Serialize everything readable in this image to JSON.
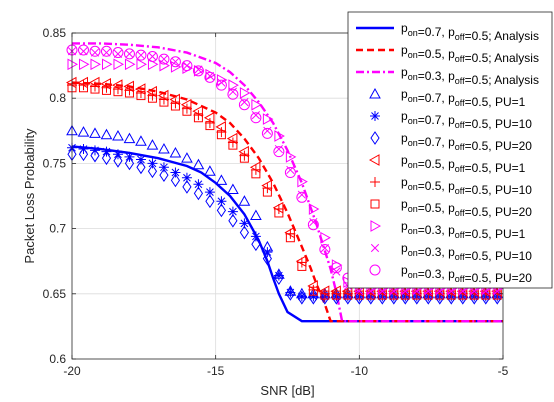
{
  "chart_data": {
    "type": "line",
    "xlabel": "SNR [dB]",
    "ylabel": "Packet Loss Probability",
    "xlim": [
      -20,
      -5
    ],
    "ylim": [
      0.6,
      0.85
    ],
    "xticks": [
      -20,
      -15,
      -10,
      -5
    ],
    "yticks": [
      0.6,
      0.65,
      0.7,
      0.75,
      0.8,
      0.85
    ],
    "xtick_labels": [
      "-20",
      "-15",
      "-10",
      "-5"
    ],
    "ytick_labels": [
      "0.6",
      "0.65",
      "0.7",
      "0.75",
      "0.8",
      "0.85"
    ],
    "grid": true,
    "legend_position": "top-right",
    "series": [
      {
        "name": "p_on=0.7, p_off=0.5; Analysis",
        "kind": "line",
        "color": "#0000ff",
        "dash": "solid",
        "x": [
          -20,
          -19,
          -18,
          -17,
          -16,
          -15.5,
          -15,
          -14.5,
          -14,
          -13.5,
          -13.2,
          -13,
          -12.8,
          -12.5,
          -12,
          -11,
          -10,
          -9,
          -8,
          -7,
          -6,
          -5
        ],
        "y": [
          0.763,
          0.761,
          0.758,
          0.754,
          0.748,
          0.743,
          0.735,
          0.725,
          0.711,
          0.691,
          0.675,
          0.662,
          0.65,
          0.636,
          0.629,
          0.629,
          0.629,
          0.629,
          0.629,
          0.629,
          0.629,
          0.629
        ]
      },
      {
        "name": "p_on=0.5, p_off=0.5; Analysis",
        "kind": "line",
        "color": "#ff0000",
        "dash": "dashed",
        "x": [
          -20,
          -19,
          -18,
          -17,
          -16,
          -15,
          -14.5,
          -14,
          -13.5,
          -13,
          -12.5,
          -12,
          -11.7,
          -11.5,
          -11.2,
          -11,
          -10,
          -9,
          -8,
          -7,
          -6,
          -5
        ],
        "y": [
          0.812,
          0.811,
          0.809,
          0.805,
          0.799,
          0.789,
          0.781,
          0.769,
          0.754,
          0.735,
          0.712,
          0.686,
          0.67,
          0.658,
          0.642,
          0.629,
          0.629,
          0.629,
          0.629,
          0.629,
          0.629,
          0.629
        ]
      },
      {
        "name": "p_on=0.3, p_off=0.5; Analysis",
        "kind": "line",
        "color": "#ff00ff",
        "dash": "dashdot",
        "x": [
          -20,
          -19,
          -18,
          -17,
          -16,
          -15,
          -14.5,
          -14,
          -13.5,
          -13,
          -12.5,
          -12,
          -11.5,
          -11,
          -10.8,
          -10.6,
          -10,
          -9,
          -8,
          -7,
          -6,
          -5
        ],
        "y": [
          0.842,
          0.842,
          0.841,
          0.839,
          0.835,
          0.827,
          0.82,
          0.81,
          0.797,
          0.781,
          0.76,
          0.735,
          0.704,
          0.669,
          0.651,
          0.629,
          0.629,
          0.629,
          0.629,
          0.629,
          0.629,
          0.629
        ]
      },
      {
        "name": "p_on=0.7, p_off=0.5, PU=1",
        "kind": "marker",
        "marker": "triangle-up",
        "color": "#0000ff",
        "x": [
          -20,
          -19.6,
          -19.2,
          -18.8,
          -18.4,
          -18,
          -17.6,
          -17.2,
          -16.8,
          -16.4,
          -16,
          -15.6,
          -15.2,
          -14.8,
          -14.4,
          -14,
          -13.6,
          -13.2,
          -12.8,
          -12.4,
          -12,
          -11.6,
          -11.2,
          -10.8,
          -10.4,
          -10,
          -9.6,
          -9.2,
          -8.8,
          -8.4,
          -8,
          -7.6,
          -7.2,
          -6.8,
          -6.4,
          -6,
          -5.6,
          -5.2
        ],
        "y": [
          0.775,
          0.774,
          0.773,
          0.772,
          0.771,
          0.769,
          0.767,
          0.764,
          0.761,
          0.758,
          0.754,
          0.749,
          0.744,
          0.737,
          0.73,
          0.721,
          0.71,
          0.686,
          0.665,
          0.652,
          0.65,
          0.65,
          0.65,
          0.65,
          0.65,
          0.65,
          0.65,
          0.65,
          0.65,
          0.65,
          0.65,
          0.65,
          0.65,
          0.65,
          0.65,
          0.65,
          0.65,
          0.65
        ]
      },
      {
        "name": "p_on=0.7, p_off=0.5, PU=10",
        "kind": "marker",
        "marker": "asterisk",
        "color": "#0000ff",
        "x": [
          -20,
          -19.6,
          -19.2,
          -18.8,
          -18.4,
          -18,
          -17.6,
          -17.2,
          -16.8,
          -16.4,
          -16,
          -15.6,
          -15.2,
          -14.8,
          -14.4,
          -14,
          -13.6,
          -13.2,
          -12.8,
          -12.4,
          -12,
          -11.6,
          -11.2,
          -10.8,
          -10.4,
          -10,
          -9.6,
          -9.2,
          -8.8,
          -8.4,
          -8,
          -7.6,
          -7.2,
          -6.8,
          -6.4,
          -6,
          -5.6,
          -5.2
        ],
        "y": [
          0.762,
          0.761,
          0.76,
          0.759,
          0.757,
          0.755,
          0.753,
          0.75,
          0.747,
          0.743,
          0.739,
          0.734,
          0.728,
          0.721,
          0.713,
          0.704,
          0.694,
          0.682,
          0.664,
          0.651,
          0.648,
          0.648,
          0.648,
          0.648,
          0.648,
          0.648,
          0.648,
          0.648,
          0.648,
          0.648,
          0.648,
          0.648,
          0.648,
          0.648,
          0.648,
          0.648,
          0.648,
          0.648
        ]
      },
      {
        "name": "p_on=0.7, p_off=0.5, PU=20",
        "kind": "marker",
        "marker": "diamond",
        "color": "#0000ff",
        "x": [
          -20,
          -19.6,
          -19.2,
          -18.8,
          -18.4,
          -18,
          -17.6,
          -17.2,
          -16.8,
          -16.4,
          -16,
          -15.6,
          -15.2,
          -14.8,
          -14.4,
          -14,
          -13.6,
          -13.2,
          -12.8,
          -12.4,
          -12,
          -11.6,
          -11.2,
          -10.8,
          -10.4,
          -10,
          -9.6,
          -9.2,
          -8.8,
          -8.4,
          -8,
          -7.6,
          -7.2,
          -6.8,
          -6.4,
          -6,
          -5.6,
          -5.2
        ],
        "y": [
          0.757,
          0.757,
          0.756,
          0.754,
          0.752,
          0.75,
          0.747,
          0.744,
          0.741,
          0.737,
          0.732,
          0.727,
          0.721,
          0.714,
          0.706,
          0.697,
          0.688,
          0.677,
          0.662,
          0.65,
          0.647,
          0.647,
          0.647,
          0.647,
          0.647,
          0.647,
          0.647,
          0.647,
          0.647,
          0.647,
          0.647,
          0.647,
          0.647,
          0.647,
          0.647,
          0.647,
          0.647,
          0.647
        ]
      },
      {
        "name": "p_on=0.5, p_off=0.5, PU=1",
        "kind": "marker",
        "marker": "triangle-left",
        "color": "#ff0000",
        "x": [
          -20,
          -19.6,
          -19.2,
          -18.8,
          -18.4,
          -18,
          -17.6,
          -17.2,
          -16.8,
          -16.4,
          -16,
          -15.6,
          -15.2,
          -14.8,
          -14.4,
          -14,
          -13.6,
          -13.2,
          -12.8,
          -12.4,
          -12,
          -11.6,
          -11.2,
          -10.8,
          -10.4,
          -10,
          -9.6,
          -9.2,
          -8.8,
          -8.4,
          -8,
          -7.6,
          -7.2,
          -6.8,
          -6.4,
          -6,
          -5.6,
          -5.2
        ],
        "y": [
          0.812,
          0.812,
          0.812,
          0.811,
          0.81,
          0.809,
          0.807,
          0.805,
          0.802,
          0.799,
          0.795,
          0.79,
          0.785,
          0.778,
          0.769,
          0.759,
          0.747,
          0.733,
          0.716,
          0.697,
          0.675,
          0.656,
          0.652,
          0.652,
          0.652,
          0.652,
          0.652,
          0.652,
          0.652,
          0.652,
          0.652,
          0.652,
          0.652,
          0.652,
          0.652,
          0.652,
          0.652,
          0.652
        ]
      },
      {
        "name": "p_on=0.5, p_off=0.5, PU=10",
        "kind": "marker",
        "marker": "plus",
        "color": "#ff0000",
        "x": [
          -20,
          -19.6,
          -19.2,
          -18.8,
          -18.4,
          -18,
          -17.6,
          -17.2,
          -16.8,
          -16.4,
          -16,
          -15.6,
          -15.2,
          -14.8,
          -14.4,
          -14,
          -13.6,
          -13.2,
          -12.8,
          -12.4,
          -12,
          -11.6,
          -11.2,
          -10.8,
          -10.4,
          -10,
          -9.6,
          -9.2,
          -8.8,
          -8.4,
          -8,
          -7.6,
          -7.2,
          -6.8,
          -6.4,
          -6,
          -5.6,
          -5.2
        ],
        "y": [
          0.81,
          0.81,
          0.809,
          0.808,
          0.807,
          0.806,
          0.804,
          0.802,
          0.799,
          0.796,
          0.792,
          0.787,
          0.781,
          0.774,
          0.766,
          0.756,
          0.745,
          0.731,
          0.715,
          0.696,
          0.674,
          0.653,
          0.65,
          0.65,
          0.65,
          0.65,
          0.65,
          0.65,
          0.65,
          0.65,
          0.65,
          0.65,
          0.65,
          0.65,
          0.65,
          0.65,
          0.65,
          0.65
        ]
      },
      {
        "name": "p_on=0.5, p_off=0.5, PU=20",
        "kind": "marker",
        "marker": "square",
        "color": "#ff0000",
        "x": [
          -20,
          -19.6,
          -19.2,
          -18.8,
          -18.4,
          -18,
          -17.6,
          -17.2,
          -16.8,
          -16.4,
          -16,
          -15.6,
          -15.2,
          -14.8,
          -14.4,
          -14,
          -13.6,
          -13.2,
          -12.8,
          -12.4,
          -12,
          -11.6,
          -11.2,
          -10.8,
          -10.4,
          -10,
          -9.6,
          -9.2,
          -8.8,
          -8.4,
          -8,
          -7.6,
          -7.2,
          -6.8,
          -6.4,
          -6,
          -5.6,
          -5.2
        ],
        "y": [
          0.808,
          0.808,
          0.807,
          0.806,
          0.805,
          0.804,
          0.802,
          0.8,
          0.797,
          0.794,
          0.79,
          0.785,
          0.779,
          0.772,
          0.764,
          0.754,
          0.742,
          0.728,
          0.712,
          0.693,
          0.671,
          0.652,
          0.649,
          0.649,
          0.649,
          0.649,
          0.649,
          0.649,
          0.649,
          0.649,
          0.649,
          0.649,
          0.649,
          0.649,
          0.649,
          0.649,
          0.649,
          0.649
        ]
      },
      {
        "name": "p_on=0.3, p_off=0.5, PU=1",
        "kind": "marker",
        "marker": "triangle-right",
        "color": "#ff00ff",
        "x": [
          -20,
          -19.6,
          -19.2,
          -18.8,
          -18.4,
          -18,
          -17.6,
          -17.2,
          -16.8,
          -16.4,
          -16,
          -15.6,
          -15.2,
          -14.8,
          -14.4,
          -14,
          -13.6,
          -13.2,
          -12.8,
          -12.4,
          -12,
          -11.6,
          -11.2,
          -10.8,
          -10.4,
          -10,
          -9.6,
          -9.2,
          -8.8,
          -8.4,
          -8,
          -7.6,
          -7.2,
          -6.8,
          -6.4,
          -6,
          -5.6,
          -5.2
        ],
        "y": [
          0.826,
          0.826,
          0.826,
          0.826,
          0.826,
          0.826,
          0.826,
          0.826,
          0.825,
          0.824,
          0.823,
          0.821,
          0.818,
          0.814,
          0.81,
          0.804,
          0.795,
          0.784,
          0.771,
          0.755,
          0.736,
          0.715,
          0.693,
          0.672,
          0.659,
          0.655,
          0.654,
          0.654,
          0.654,
          0.654,
          0.654,
          0.654,
          0.654,
          0.654,
          0.654,
          0.654,
          0.654,
          0.654
        ]
      },
      {
        "name": "p_on=0.3, p_off=0.5, PU=10",
        "kind": "marker",
        "marker": "cross",
        "color": "#ff00ff",
        "x": [
          -20,
          -19.6,
          -19.2,
          -18.8,
          -18.4,
          -18,
          -17.6,
          -17.2,
          -16.8,
          -16.4,
          -16,
          -15.6,
          -15.2,
          -14.8,
          -14.4,
          -14,
          -13.6,
          -13.2,
          -12.8,
          -12.4,
          -12,
          -11.6,
          -11.2,
          -10.8,
          -10.4,
          -10,
          -9.6,
          -9.2,
          -8.8,
          -8.4,
          -8,
          -7.6,
          -7.2,
          -6.8,
          -6.4,
          -6,
          -5.6,
          -5.2
        ],
        "y": [
          0.836,
          0.836,
          0.835,
          0.835,
          0.834,
          0.834,
          0.833,
          0.832,
          0.83,
          0.828,
          0.825,
          0.822,
          0.817,
          0.812,
          0.805,
          0.797,
          0.787,
          0.775,
          0.761,
          0.745,
          0.726,
          0.705,
          0.685,
          0.667,
          0.656,
          0.652,
          0.652,
          0.652,
          0.652,
          0.652,
          0.652,
          0.652,
          0.652,
          0.652,
          0.652,
          0.652,
          0.652,
          0.652
        ]
      },
      {
        "name": "p_on=0.3, p_off=0.5, PU=20",
        "kind": "marker",
        "marker": "circle",
        "color": "#ff00ff",
        "x": [
          -20,
          -19.6,
          -19.2,
          -18.8,
          -18.4,
          -18,
          -17.6,
          -17.2,
          -16.8,
          -16.4,
          -16,
          -15.6,
          -15.2,
          -14.8,
          -14.4,
          -14,
          -13.6,
          -13.2,
          -12.8,
          -12.4,
          -12,
          -11.6,
          -11.2,
          -10.8,
          -10.4,
          -10,
          -9.6,
          -9.2,
          -8.8,
          -8.4,
          -8,
          -7.6,
          -7.2,
          -6.8,
          -6.4,
          -6,
          -5.6,
          -5.2
        ],
        "y": [
          0.837,
          0.837,
          0.836,
          0.836,
          0.835,
          0.834,
          0.833,
          0.832,
          0.83,
          0.828,
          0.825,
          0.821,
          0.816,
          0.81,
          0.803,
          0.795,
          0.785,
          0.773,
          0.759,
          0.743,
          0.724,
          0.703,
          0.684,
          0.67,
          0.662,
          0.66,
          0.66,
          0.66,
          0.66,
          0.66,
          0.66,
          0.66,
          0.66,
          0.66,
          0.66,
          0.66,
          0.66,
          0.66
        ]
      }
    ],
    "legend": [
      {
        "series": 0,
        "p_on": "0.7",
        "p_off": "0.5",
        "suffix": "; Analysis"
      },
      {
        "series": 1,
        "p_on": "0.5",
        "p_off": "0.5",
        "suffix": "; Analysis"
      },
      {
        "series": 2,
        "p_on": "0.3",
        "p_off": "0.5",
        "suffix": "; Analysis"
      },
      {
        "series": 3,
        "p_on": "0.7",
        "p_off": "0.5",
        "suffix": ", PU=1"
      },
      {
        "series": 4,
        "p_on": "0.7",
        "p_off": "0.5",
        "suffix": ", PU=10"
      },
      {
        "series": 5,
        "p_on": "0.7",
        "p_off": "0.5",
        "suffix": ", PU=20"
      },
      {
        "series": 6,
        "p_on": "0.5",
        "p_off": "0.5",
        "suffix": ", PU=1"
      },
      {
        "series": 7,
        "p_on": "0.5",
        "p_off": "0.5",
        "suffix": ", PU=10"
      },
      {
        "series": 8,
        "p_on": "0.5",
        "p_off": "0.5",
        "suffix": ", PU=20"
      },
      {
        "series": 9,
        "p_on": "0.3",
        "p_off": "0.5",
        "suffix": ", PU=1"
      },
      {
        "series": 10,
        "p_on": "0.3",
        "p_off": "0.5",
        "suffix": ", PU=10"
      },
      {
        "series": 11,
        "p_on": "0.3",
        "p_off": "0.5",
        "suffix": ", PU=20"
      }
    ],
    "legend_text": {
      "p": "p",
      "on": "on",
      "off": "off",
      "eq": "=",
      "sep": ", "
    }
  }
}
